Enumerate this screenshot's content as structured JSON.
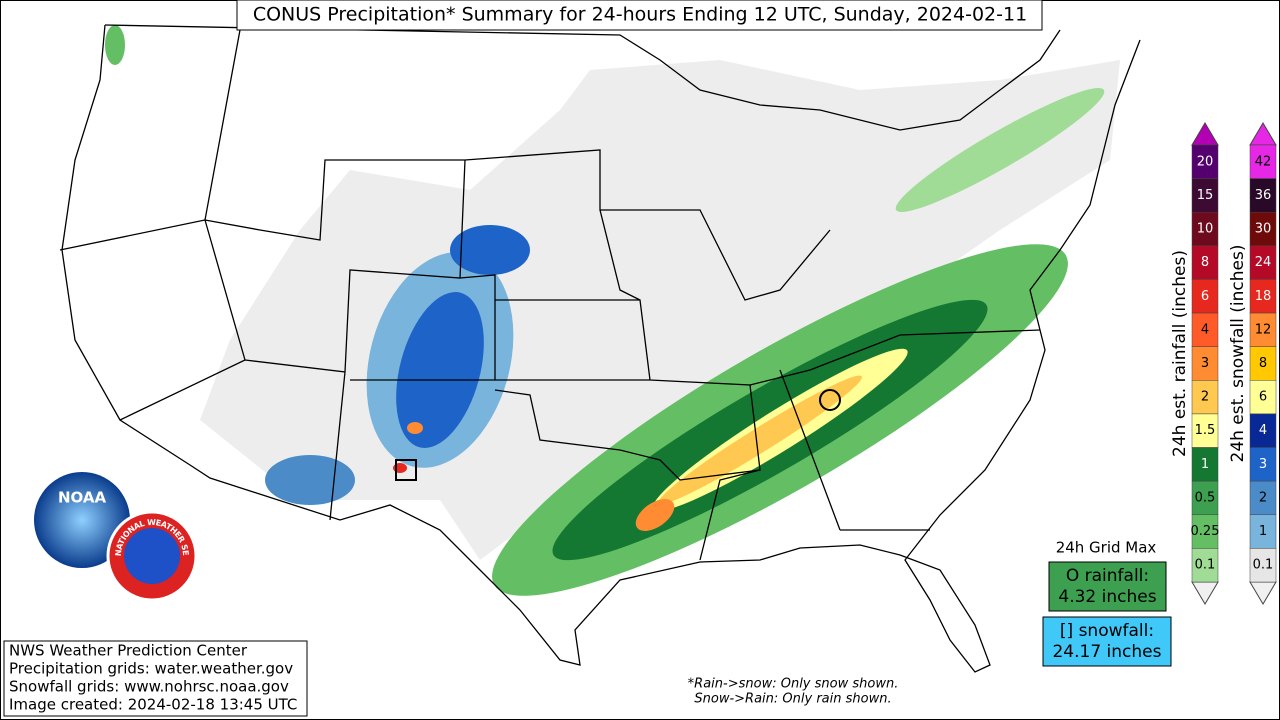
{
  "title": "CONUS Precipitation* Summary for 24-hours Ending 12 UTC, Sunday, 2024-02-11",
  "logos": {
    "noaa": "NOAA",
    "nws": "NATIONAL WEATHER SERVICE"
  },
  "legend": {
    "rain": {
      "label": "24h est. rainfall (inches)",
      "ticks": [
        "20",
        "15",
        "10",
        "8",
        "6",
        "4",
        "3",
        "2",
        "1.5",
        "1",
        "0.5",
        "0.25",
        "0.1"
      ],
      "colors": [
        "#54006e",
        "#3c0a32",
        "#6e0a1e",
        "#b40a28",
        "#e6281e",
        "#ff5a28",
        "#ff8c32",
        "#ffc850",
        "#ffff96",
        "#147832",
        "#3ca050",
        "#64be64",
        "#a0dc96"
      ],
      "over_color": "#b400b4",
      "under_color": "#f0f0f0"
    },
    "snow": {
      "label": "24h est. snowfall (inches)",
      "ticks": [
        "42",
        "36",
        "30",
        "24",
        "18",
        "12",
        "8",
        "6",
        "4",
        "3",
        "2",
        "1",
        "0.1"
      ],
      "colors": [
        "#e628e6",
        "#280a28",
        "#6e0a0a",
        "#b40a28",
        "#e6281e",
        "#ff8c32",
        "#ffc800",
        "#ffff96",
        "#082896",
        "#1e64c8",
        "#4b8cc8",
        "#78b4dc",
        "#e6e6e6"
      ],
      "over_color": "#e628e6",
      "under_color": "#f0f0f0"
    }
  },
  "grid_max": {
    "heading": "24h Grid Max",
    "rainfall": {
      "label": "O rainfall:",
      "value": "4.32 inches",
      "color": "#3ca050"
    },
    "snowfall": {
      "label": "[] snowfall:",
      "value": "24.17 inches",
      "color": "#40c8f8"
    }
  },
  "info": [
    "NWS Weather Prediction Center",
    "Precipitation grids: water.weather.gov",
    "Snowfall grids: www.nohrsc.noaa.gov",
    "Image created: 2024-02-18 13:45 UTC"
  ],
  "footnote": [
    "*Rain->snow: Only snow shown.",
    "Snow->Rain: Only rain shown."
  ]
}
